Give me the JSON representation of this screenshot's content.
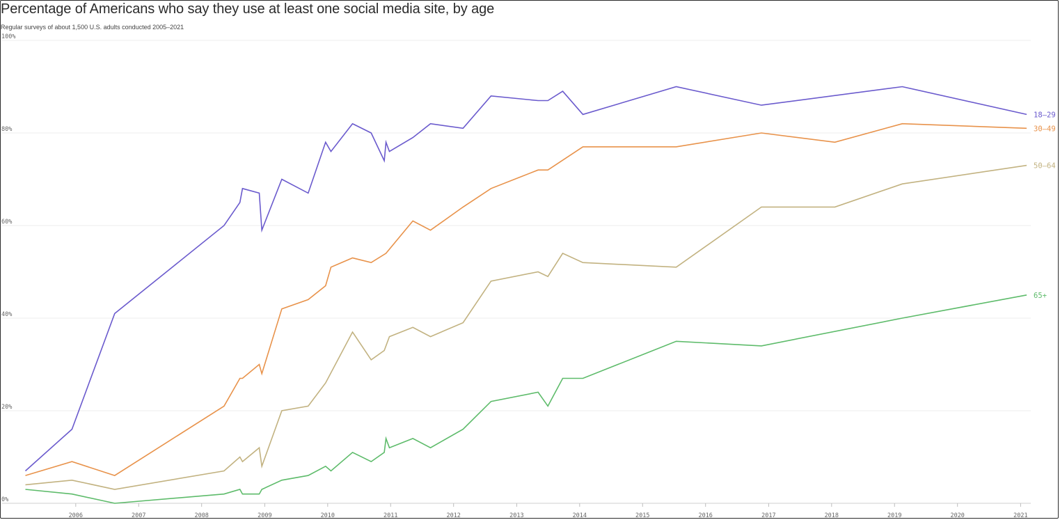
{
  "chart_data": {
    "type": "line",
    "title": "Percentage of Americans who say they use at least one social media site, by age",
    "subtitle": "Regular surveys of about 1,500 U.S. adults conducted 2005–2021",
    "xlabel": "",
    "ylabel": "",
    "ylim": [
      0,
      100
    ],
    "xlim": [
      "2005-03-01",
      "2021-03-01"
    ],
    "y_ticks": [
      0,
      20,
      40,
      60,
      80,
      100
    ],
    "y_tick_labels": [
      "0%",
      "20%",
      "40%",
      "60%",
      "80%",
      "100%"
    ],
    "x_ticks": [
      "2006-01-01",
      "2007-01-01",
      "2008-01-01",
      "2009-01-01",
      "2010-01-01",
      "2011-01-01",
      "2012-01-01",
      "2013-01-01",
      "2014-01-01",
      "2015-01-01",
      "2016-01-01",
      "2017-01-01",
      "2018-01-01",
      "2019-01-01",
      "2020-01-01",
      "2021-01-01"
    ],
    "x_tick_labels": [
      "2006",
      "2007",
      "2008",
      "2009",
      "2010",
      "2011",
      "2012",
      "2013",
      "2014",
      "2015",
      "2016",
      "2017",
      "2018",
      "2019",
      "2020",
      "2021"
    ],
    "grid": true,
    "legend": "end-of-line labels",
    "series": [
      {
        "name": "18–29",
        "color": "#6a5acd",
        "points": [
          [
            "2005-03-15",
            7
          ],
          [
            "2005-12-10",
            16
          ],
          [
            "2006-08-15",
            41
          ],
          [
            "2008-05-10",
            60
          ],
          [
            "2008-08-10",
            65
          ],
          [
            "2008-08-25",
            68
          ],
          [
            "2008-11-30",
            67
          ],
          [
            "2008-12-15",
            59
          ],
          [
            "2009-04-10",
            70
          ],
          [
            "2009-09-10",
            67
          ],
          [
            "2009-12-20",
            78
          ],
          [
            "2010-01-20",
            76
          ],
          [
            "2010-05-25",
            82
          ],
          [
            "2010-09-10",
            80
          ],
          [
            "2010-11-25",
            74
          ],
          [
            "2010-12-05",
            78
          ],
          [
            "2010-12-25",
            76
          ],
          [
            "2011-05-10",
            79
          ],
          [
            "2011-08-20",
            82
          ],
          [
            "2012-02-25",
            81
          ],
          [
            "2012-08-05",
            88
          ],
          [
            "2013-05-05",
            87
          ],
          [
            "2013-07-01",
            87
          ],
          [
            "2013-09-25",
            89
          ],
          [
            "2014-01-20",
            84
          ],
          [
            "2015-07-15",
            90
          ],
          [
            "2016-11-20",
            86
          ],
          [
            "2019-02-15",
            90
          ],
          [
            "2021-02-05",
            84
          ]
        ]
      },
      {
        "name": "30–49",
        "color": "#e8924a",
        "points": [
          [
            "2005-03-15",
            6
          ],
          [
            "2005-12-10",
            9
          ],
          [
            "2006-08-15",
            6
          ],
          [
            "2008-05-10",
            21
          ],
          [
            "2008-08-10",
            27
          ],
          [
            "2008-08-25",
            27
          ],
          [
            "2008-11-30",
            30
          ],
          [
            "2008-12-15",
            28
          ],
          [
            "2009-04-10",
            42
          ],
          [
            "2009-09-10",
            44
          ],
          [
            "2009-12-20",
            47
          ],
          [
            "2010-01-20",
            51
          ],
          [
            "2010-05-25",
            53
          ],
          [
            "2010-09-10",
            52
          ],
          [
            "2010-12-05",
            54
          ],
          [
            "2011-05-10",
            61
          ],
          [
            "2011-08-20",
            59
          ],
          [
            "2012-02-25",
            64
          ],
          [
            "2012-08-05",
            68
          ],
          [
            "2013-05-05",
            72
          ],
          [
            "2013-07-01",
            72
          ],
          [
            "2014-01-20",
            77
          ],
          [
            "2015-07-15",
            77
          ],
          [
            "2016-11-20",
            80
          ],
          [
            "2018-01-20",
            78
          ],
          [
            "2019-02-15",
            82
          ],
          [
            "2021-02-05",
            81
          ]
        ]
      },
      {
        "name": "50–64",
        "color": "#c2b280",
        "points": [
          [
            "2005-03-15",
            4
          ],
          [
            "2005-12-10",
            5
          ],
          [
            "2006-08-15",
            3
          ],
          [
            "2008-05-10",
            7
          ],
          [
            "2008-08-10",
            10
          ],
          [
            "2008-08-25",
            9
          ],
          [
            "2008-11-30",
            12
          ],
          [
            "2008-12-15",
            8
          ],
          [
            "2009-04-10",
            20
          ],
          [
            "2009-09-10",
            21
          ],
          [
            "2009-12-20",
            26
          ],
          [
            "2010-05-25",
            37
          ],
          [
            "2010-09-10",
            31
          ],
          [
            "2010-11-25",
            33
          ],
          [
            "2010-12-25",
            36
          ],
          [
            "2011-05-10",
            38
          ],
          [
            "2011-08-20",
            36
          ],
          [
            "2012-02-25",
            39
          ],
          [
            "2012-08-05",
            48
          ],
          [
            "2013-05-05",
            50
          ],
          [
            "2013-07-01",
            49
          ],
          [
            "2013-09-25",
            54
          ],
          [
            "2014-01-20",
            52
          ],
          [
            "2015-07-15",
            51
          ],
          [
            "2016-11-20",
            64
          ],
          [
            "2018-01-20",
            64
          ],
          [
            "2019-02-15",
            69
          ],
          [
            "2021-02-05",
            73
          ]
        ]
      },
      {
        "name": "65+",
        "color": "#5dbb6a",
        "points": [
          [
            "2005-03-15",
            3
          ],
          [
            "2005-12-10",
            2
          ],
          [
            "2006-08-15",
            0
          ],
          [
            "2008-05-10",
            2
          ],
          [
            "2008-08-10",
            3
          ],
          [
            "2008-08-25",
            2
          ],
          [
            "2008-11-30",
            2
          ],
          [
            "2008-12-15",
            3
          ],
          [
            "2009-04-10",
            5
          ],
          [
            "2009-09-10",
            6
          ],
          [
            "2009-12-20",
            8
          ],
          [
            "2010-01-20",
            7
          ],
          [
            "2010-05-25",
            11
          ],
          [
            "2010-09-10",
            9
          ],
          [
            "2010-11-25",
            11
          ],
          [
            "2010-12-05",
            14
          ],
          [
            "2010-12-25",
            12
          ],
          [
            "2011-05-10",
            14
          ],
          [
            "2011-08-20",
            12
          ],
          [
            "2012-02-25",
            16
          ],
          [
            "2012-08-05",
            22
          ],
          [
            "2013-05-05",
            24
          ],
          [
            "2013-07-01",
            21
          ],
          [
            "2013-09-25",
            27
          ],
          [
            "2014-01-20",
            27
          ],
          [
            "2015-07-15",
            35
          ],
          [
            "2016-11-20",
            34
          ],
          [
            "2019-02-15",
            40
          ],
          [
            "2021-02-05",
            45
          ]
        ]
      }
    ]
  }
}
